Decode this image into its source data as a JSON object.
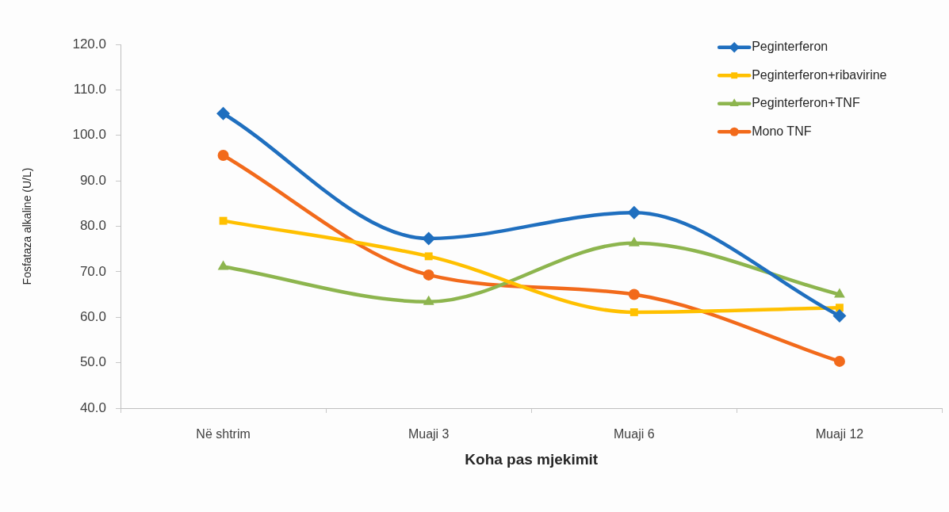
{
  "chart_data": {
    "type": "line",
    "xlabel": "Koha pas mjekimit",
    "ylabel": "Fosfataza alkaline (U/L)",
    "categories": [
      "Në shtrim",
      "Muaji 3",
      "Muaji 6",
      "Muaji 12"
    ],
    "series": [
      {
        "name": "Peginterferon",
        "color": "#1f6fbf",
        "marker": "diamond",
        "values": [
          104.8,
          77.3,
          83.0,
          60.3
        ]
      },
      {
        "name": "Peginterferon+ribavirine",
        "color": "#ffc000",
        "marker": "square",
        "values": [
          81.2,
          73.4,
          61.1,
          62.1
        ]
      },
      {
        "name": "Peginterferon+TNF",
        "color": "#8db54e",
        "marker": "triangle",
        "values": [
          71.1,
          63.4,
          76.3,
          65.0
        ]
      },
      {
        "name": "Mono TNF",
        "color": "#f26a1b",
        "marker": "circle",
        "values": [
          95.6,
          69.3,
          65.0,
          50.3
        ]
      }
    ],
    "ylim": [
      40,
      120
    ],
    "yticks": [
      {
        "value": 40,
        "label": "40.0"
      },
      {
        "value": 50,
        "label": "50.0"
      },
      {
        "value": 60,
        "label": "60.0"
      },
      {
        "value": 70,
        "label": "70.0"
      },
      {
        "value": 80,
        "label": "80.0"
      },
      {
        "value": 90,
        "label": "90.0"
      },
      {
        "value": 100,
        "label": "100.0"
      },
      {
        "value": 110,
        "label": "110.0"
      },
      {
        "value": 120,
        "label": "120.0"
      }
    ],
    "grid": false,
    "legend": "top right",
    "line_style": "solid"
  }
}
